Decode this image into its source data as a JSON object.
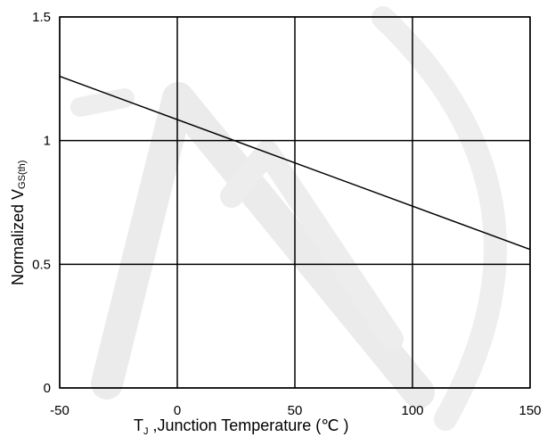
{
  "chart_data": {
    "type": "line",
    "title": "",
    "xlabel_main": "T",
    "xlabel_sub": "J",
    "xlabel_rest": " ,Junction Temperature (℃ )",
    "ylabel_main": "Normalized V",
    "ylabel_sub": "GS(th)",
    "xlim": [
      -50,
      150
    ],
    "ylim": [
      0,
      1.5
    ],
    "x_ticks": [
      -50,
      0,
      50,
      100,
      150
    ],
    "y_ticks": [
      0,
      0.5,
      1,
      1.5
    ],
    "x_tick_labels": [
      "-50",
      "0",
      "50",
      "100",
      "150"
    ],
    "y_tick_labels": [
      "0",
      "0.5",
      "1",
      "1.5"
    ],
    "grid": true,
    "series": [
      {
        "x": [
          -50,
          150
        ],
        "y": [
          1.26,
          0.56
        ]
      }
    ]
  },
  "colors": {
    "line": "#000000",
    "grid": "#000000",
    "watermark": "#e8e8e8"
  }
}
